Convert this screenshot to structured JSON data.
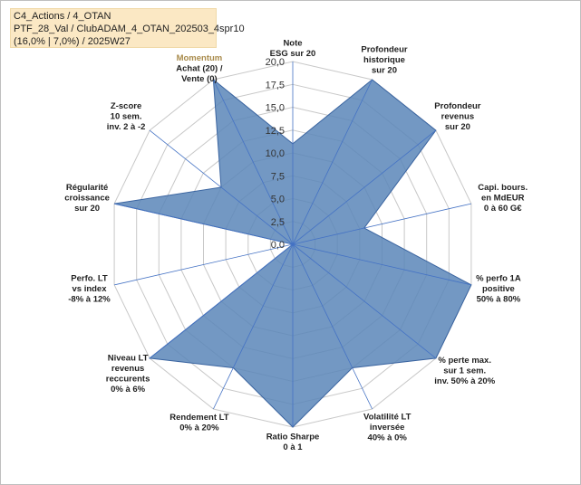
{
  "info_box": {
    "line1": "C4_Actions / 4_OTAN",
    "line2": "PTF_28_Val / ClubADAM_4_OTAN_202503_4spr10",
    "line3": "(16,0% | 7,0%) / 2025W27",
    "momentum_label": "Momentum"
  },
  "colors": {
    "fill": "#5b86b8",
    "stroke": "#3a64a0",
    "grid": "#c8c8c8",
    "spoke": "#4472c4",
    "label": "#1f1f1f",
    "momentum": "#a88a4a"
  },
  "chart_data": {
    "type": "radar",
    "r_ticks": [
      "0,0",
      "2,5",
      "5,0",
      "7,5",
      "10,0",
      "12,5",
      "15,0",
      "17,5",
      "20,0"
    ],
    "r_range": [
      0,
      20
    ],
    "axes": [
      {
        "label_lines": [
          "Note",
          "ESG sur 20"
        ],
        "value": 11
      },
      {
        "label_lines": [
          "Profondeur",
          "historique",
          "sur 20"
        ],
        "value": 20
      },
      {
        "label_lines": [
          "Profondeur",
          "revenus",
          "sur 20"
        ],
        "value": 20
      },
      {
        "label_lines": [
          "Capi. bours.",
          "en MdEUR",
          "0 à 60 G€"
        ],
        "value": 8
      },
      {
        "label_lines": [
          "% perfo 1A",
          "positive",
          "50% à 80%"
        ],
        "value": 20
      },
      {
        "label_lines": [
          "% perte max.",
          "sur 1 sem.",
          "inv. 50% à 20%"
        ],
        "value": 20
      },
      {
        "label_lines": [
          "Volatilité LT",
          "inversée",
          "40% à 0%"
        ],
        "value": 15
      },
      {
        "label_lines": [
          "Ratio Sharpe",
          "0 à 1"
        ],
        "value": 20
      },
      {
        "label_lines": [
          "Rendement LT",
          "0% à 20%"
        ],
        "value": 15
      },
      {
        "label_lines": [
          "Niveau LT",
          "revenus",
          "reccurents",
          "0% à 6%"
        ],
        "value": 20
      },
      {
        "label_lines": [
          "Perfo. LT",
          "vs index",
          "-8% à 12%"
        ],
        "value": 0
      },
      {
        "label_lines": [
          "Régularité",
          "croissance",
          "sur 20"
        ],
        "value": 20
      },
      {
        "label_lines": [
          "Z-score",
          "10 sem.",
          "inv. 2 à -2"
        ],
        "value": 10
      },
      {
        "label_lines": [
          "Achat (20) /",
          "Vente (0)"
        ],
        "value": 20
      }
    ]
  }
}
